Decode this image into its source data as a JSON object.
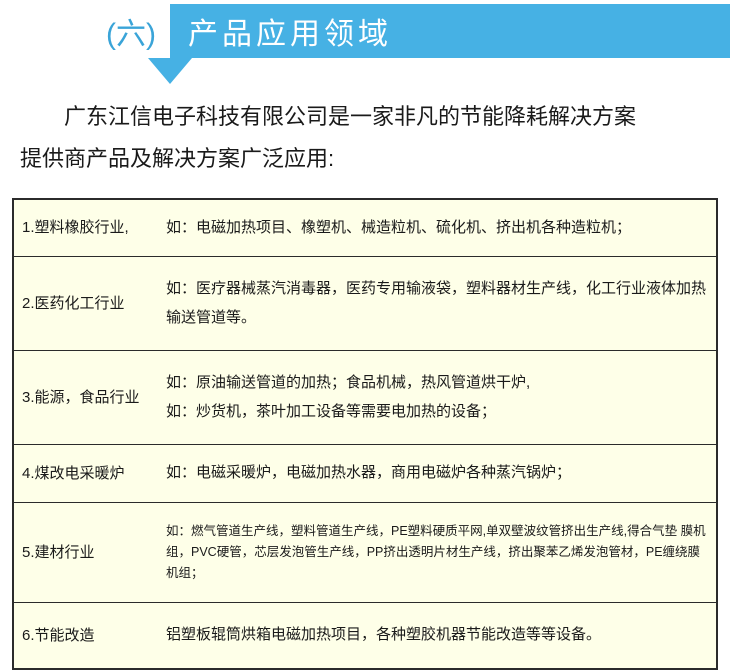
{
  "header": {
    "number": "(六)",
    "title": "产品应用领域",
    "bar_color": "#46b1e4",
    "number_color": "#3aa4d8"
  },
  "intro": {
    "line1": "广东江信电子科技有限公司是一家非凡的节能降耗解决方案",
    "line2": "提供商产品及解决方案广泛应用:"
  },
  "table": {
    "bg_color": "#feffe8",
    "border_color": "#2b2b2b",
    "rows": [
      {
        "label": "1.塑料橡胶行业,",
        "content": "如：电磁加热项目、橡塑机、械造粒机、硫化机、挤出机各种造粒机；"
      },
      {
        "label": "2.医药化工行业",
        "content": "如：医疗器械蒸汽消毒器，医药专用输液袋，塑料器材生产线，化工行业液体加热输送管道等。"
      },
      {
        "label": "3.能源，食品行业",
        "content_line1": "如：原油输送管道的加热；食品机械，热风管道烘干炉,",
        "content_line2": "如：炒货机，茶叶加工设备等需要电加热的设备；"
      },
      {
        "label": "4.煤改电采暖炉",
        "content": "如：电磁采暖炉，电磁加热水器，商用电磁炉各种蒸汽锅炉；"
      },
      {
        "label": "5.建材行业",
        "content": "如：燃气管道生产线，塑料管道生产线，PE塑料硬质平网,单双壁波纹管挤出生产线,得合气垫 膜机组，PVC硬管，芯层发泡管生产线，PP挤出透明片材生产线，挤出聚苯乙烯发泡管材，PE缠绕膜机组；"
      },
      {
        "label": "6.节能改造",
        "content": "铝塑板辊筒烘箱电磁加热项目，各种塑胶机器节能改造等等设备。"
      }
    ]
  }
}
